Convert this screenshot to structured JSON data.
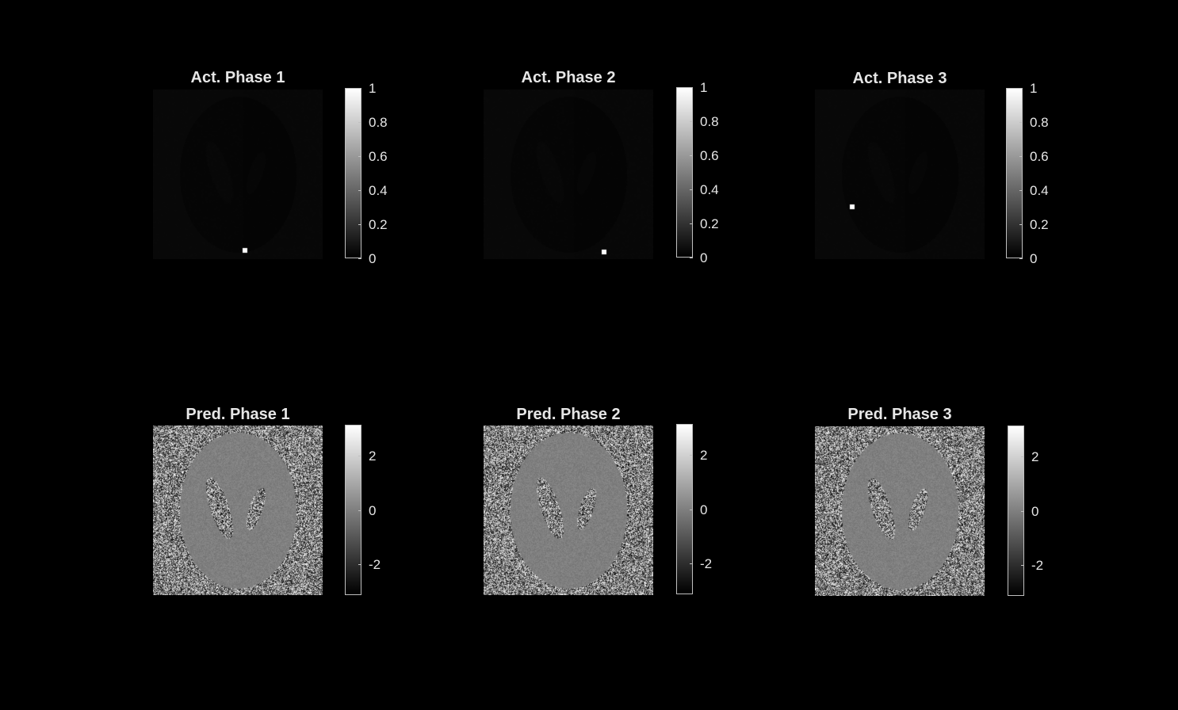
{
  "chart_data": [
    {
      "type": "heatmap",
      "title": "Act. Phase 1",
      "colormap": "gray",
      "clim": [
        0,
        1
      ],
      "colorbar_ticks": [
        "0",
        "0.2",
        "0.4",
        "0.6",
        "0.8",
        "1"
      ],
      "colorbar_tick_values": [
        0,
        0.2,
        0.4,
        0.6,
        0.8,
        1
      ],
      "content": "near-uniform dark field with faint phantom outline",
      "background_level": 0.03,
      "hot_pixel": {
        "col": 0.54,
        "row": 0.95,
        "value": 1
      }
    },
    {
      "type": "heatmap",
      "title": "Act. Phase 2",
      "colormap": "gray",
      "clim": [
        0,
        1
      ],
      "colorbar_ticks": [
        "0",
        "0.2",
        "0.4",
        "0.6",
        "0.8",
        "1"
      ],
      "colorbar_tick_values": [
        0,
        0.2,
        0.4,
        0.6,
        0.8,
        1
      ],
      "content": "near-uniform dark field with faint phantom outline",
      "background_level": 0.03,
      "hot_pixel": {
        "col": 0.71,
        "row": 0.96,
        "value": 1
      }
    },
    {
      "type": "heatmap",
      "title": "Act. Phase 3",
      "colormap": "gray",
      "clim": [
        0,
        1
      ],
      "colorbar_ticks": [
        "0",
        "0.2",
        "0.4",
        "0.6",
        "0.8",
        "1"
      ],
      "colorbar_tick_values": [
        0,
        0.2,
        0.4,
        0.6,
        0.8,
        1
      ],
      "content": "near-uniform dark field with faint phantom outline",
      "background_level": 0.03,
      "hot_pixel": {
        "col": 0.22,
        "row": 0.69,
        "value": 1
      }
    },
    {
      "type": "heatmap",
      "title": "Pred. Phase 1",
      "colormap": "gray",
      "clim": [
        -3.14,
        3.14
      ],
      "colorbar_ticks": [
        "-2",
        "0",
        "2"
      ],
      "colorbar_tick_values": [
        -2,
        0,
        2
      ],
      "content": "noisy background with uniform elliptical phantom and two noisy inner ellipses",
      "phantom_level": 0
    },
    {
      "type": "heatmap",
      "title": "Pred. Phase 2",
      "colormap": "gray",
      "clim": [
        -3.14,
        3.14
      ],
      "colorbar_ticks": [
        "-2",
        "0",
        "2"
      ],
      "colorbar_tick_values": [
        -2,
        0,
        2
      ],
      "content": "noisy background with uniform elliptical phantom and two noisy inner ellipses",
      "phantom_level": 0
    },
    {
      "type": "heatmap",
      "title": "Pred. Phase 3",
      "colormap": "gray",
      "clim": [
        -3.14,
        3.14
      ],
      "colorbar_ticks": [
        "-2",
        "0",
        "2"
      ],
      "colorbar_tick_values": [
        -2,
        0,
        2
      ],
      "content": "noisy background with uniform elliptical phantom and two noisy inner ellipses",
      "phantom_level": 0
    }
  ]
}
